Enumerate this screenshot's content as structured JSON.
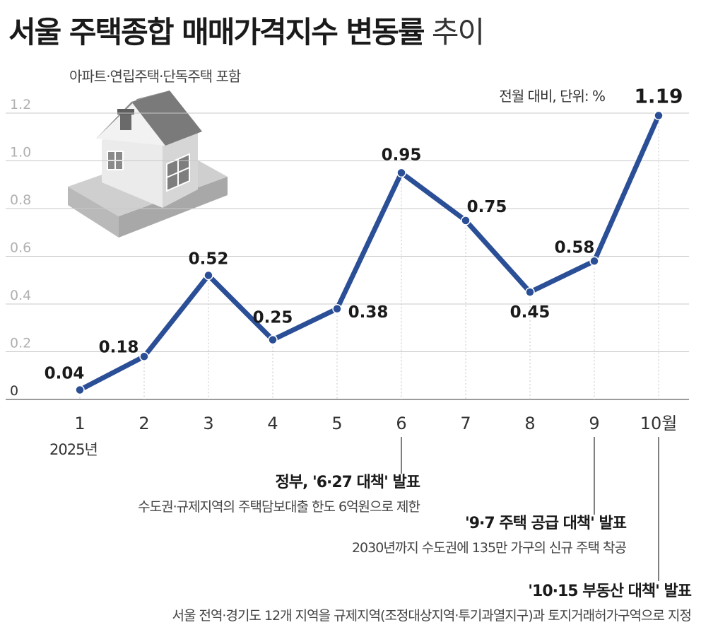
{
  "header": {
    "title_bold": "서울 주택종합 매매가격지수 변동률",
    "title_light": "추이",
    "subtitle": "아파트·연립주택·단독주택 포함",
    "unit": "전월 대비, 단위: %"
  },
  "chart_data": {
    "type": "line",
    "x": [
      "1",
      "2",
      "3",
      "4",
      "5",
      "6",
      "7",
      "8",
      "9",
      "10월"
    ],
    "x_sublabel": "2025년",
    "series": [
      {
        "values": [
          0.04,
          0.18,
          0.52,
          0.25,
          0.38,
          0.95,
          0.75,
          0.45,
          0.58,
          1.19
        ]
      }
    ],
    "data_labels": [
      "0.04",
      "0.18",
      "0.52",
      "0.25",
      "0.38",
      "0.95",
      "0.75",
      "0.45",
      "0.58",
      "1.19"
    ],
    "y_ticks": [
      "0",
      "0.2",
      "0.4",
      "0.6",
      "0.8",
      "1.0",
      "1.2"
    ],
    "ylim": [
      0,
      1.2
    ],
    "grid": true,
    "line_color": "#2b4f96"
  },
  "annotations": [
    {
      "month_index": 5,
      "head": "정부, '6·27 대책' 발표",
      "desc": "수도권·규제지역의 주택담보대출 한도 6억원으로 제한"
    },
    {
      "month_index": 8,
      "head": "'9·7 주택 공급 대책' 발표",
      "desc": "2030년까지 수도권에 135만 가구의 신규 주택 착공"
    },
    {
      "month_index": 9,
      "head": "'10·15 부동산 대책' 발표",
      "desc": "서울 전역·경기도 12개 지역을 규제지역(조정대상지역·투기과열지구)과 토지거래허가구역으로 지정"
    }
  ]
}
